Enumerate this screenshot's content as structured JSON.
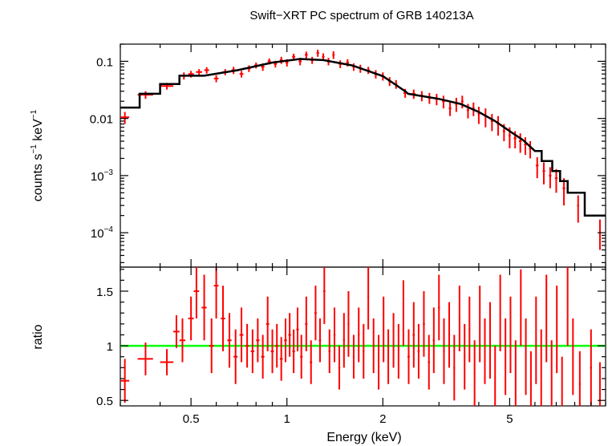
{
  "chart_data": {
    "title": "Swift−XRT PC spectrum of GRB 140213A",
    "xlabel": "Energy (keV)",
    "xscale": "log",
    "xlim": [
      0.3,
      10
    ],
    "x_ticks": [
      {
        "value": 0.5,
        "label": "0.5"
      },
      {
        "value": 1,
        "label": "1"
      },
      {
        "value": 2,
        "label": "2"
      },
      {
        "value": 5,
        "label": "5"
      }
    ],
    "panels": [
      {
        "id": "spectrum",
        "type": "line",
        "ylabel_parts": [
          "counts s",
          "−1",
          " keV",
          "−1"
        ],
        "yscale": "log",
        "ylim": [
          2.5e-05,
          0.2
        ],
        "y_ticks": [
          {
            "value": 0.1,
            "label": "0.1"
          },
          {
            "value": 0.01,
            "label": "0.01"
          },
          {
            "value": 0.001,
            "base": "10",
            "exp": "−3"
          },
          {
            "value": 0.0001,
            "base": "10",
            "exp": "−4"
          }
        ],
        "data_color": "#ff0000",
        "model_color": "#000000",
        "data": [
          [
            0.31,
            0.0105,
            0.01,
            0.0025
          ],
          [
            0.36,
            0.026,
            0.02,
            0.004
          ],
          [
            0.42,
            0.037,
            0.02,
            0.005
          ],
          [
            0.475,
            0.056,
            0.015,
            0.008
          ],
          [
            0.5,
            0.06,
            0.01,
            0.008
          ],
          [
            0.53,
            0.065,
            0.012,
            0.008
          ],
          [
            0.56,
            0.07,
            0.01,
            0.009
          ],
          [
            0.6,
            0.05,
            0.01,
            0.007
          ],
          [
            0.64,
            0.065,
            0.012,
            0.008
          ],
          [
            0.68,
            0.07,
            0.01,
            0.01
          ],
          [
            0.72,
            0.06,
            0.01,
            0.008
          ],
          [
            0.76,
            0.075,
            0.01,
            0.01
          ],
          [
            0.8,
            0.085,
            0.01,
            0.01
          ],
          [
            0.84,
            0.08,
            0.01,
            0.012
          ],
          [
            0.88,
            0.1,
            0.01,
            0.012
          ],
          [
            0.92,
            0.09,
            0.01,
            0.012
          ],
          [
            0.96,
            0.105,
            0.01,
            0.015
          ],
          [
            1.0,
            0.095,
            0.01,
            0.014
          ],
          [
            1.05,
            0.12,
            0.012,
            0.016
          ],
          [
            1.1,
            0.1,
            0.012,
            0.015
          ],
          [
            1.15,
            0.13,
            0.012,
            0.018
          ],
          [
            1.2,
            0.105,
            0.012,
            0.015
          ],
          [
            1.25,
            0.14,
            0.012,
            0.02
          ],
          [
            1.3,
            0.12,
            0.012,
            0.018
          ],
          [
            1.35,
            0.1,
            0.012,
            0.015
          ],
          [
            1.4,
            0.13,
            0.012,
            0.02
          ],
          [
            1.47,
            0.09,
            0.015,
            0.014
          ],
          [
            1.55,
            0.095,
            0.015,
            0.014
          ],
          [
            1.62,
            0.08,
            0.015,
            0.012
          ],
          [
            1.7,
            0.075,
            0.015,
            0.012
          ],
          [
            1.8,
            0.07,
            0.02,
            0.01
          ],
          [
            1.9,
            0.06,
            0.02,
            0.01
          ],
          [
            2.0,
            0.055,
            0.02,
            0.009
          ],
          [
            2.1,
            0.045,
            0.02,
            0.008
          ],
          [
            2.2,
            0.04,
            0.02,
            0.007
          ],
          [
            2.35,
            0.028,
            0.03,
            0.005
          ],
          [
            2.5,
            0.027,
            0.03,
            0.005
          ],
          [
            2.65,
            0.025,
            0.03,
            0.005
          ],
          [
            2.8,
            0.023,
            0.03,
            0.005
          ],
          [
            2.95,
            0.022,
            0.03,
            0.005
          ],
          [
            3.1,
            0.02,
            0.03,
            0.005
          ],
          [
            3.25,
            0.015,
            0.03,
            0.004
          ],
          [
            3.4,
            0.018,
            0.03,
            0.005
          ],
          [
            3.55,
            0.02,
            0.03,
            0.005
          ],
          [
            3.7,
            0.014,
            0.03,
            0.004
          ],
          [
            3.85,
            0.015,
            0.03,
            0.004
          ],
          [
            4.0,
            0.012,
            0.03,
            0.004
          ],
          [
            4.2,
            0.011,
            0.03,
            0.004
          ],
          [
            4.4,
            0.009,
            0.04,
            0.003
          ],
          [
            4.6,
            0.008,
            0.04,
            0.003
          ],
          [
            4.8,
            0.006,
            0.04,
            0.002
          ],
          [
            5.0,
            0.005,
            0.04,
            0.002
          ],
          [
            5.2,
            0.0045,
            0.05,
            0.0015
          ],
          [
            5.4,
            0.004,
            0.05,
            0.0015
          ],
          [
            5.6,
            0.0035,
            0.05,
            0.0012
          ],
          [
            5.8,
            0.003,
            0.05,
            0.001
          ],
          [
            6.1,
            0.0015,
            0.06,
            0.0006
          ],
          [
            6.4,
            0.0012,
            0.06,
            0.0005
          ],
          [
            6.7,
            0.001,
            0.06,
            0.0004
          ],
          [
            7.0,
            0.0009,
            0.07,
            0.0004
          ],
          [
            7.4,
            0.0006,
            0.07,
            0.0003
          ],
          [
            8.2,
            0.0003,
            0.06,
            0.00015
          ],
          [
            9.6,
            0.00011,
            0.05,
            6e-05
          ]
        ],
        "model": [
          [
            0.3,
            0.0155
          ],
          [
            0.345,
            0.0155
          ],
          [
            0.345,
            0.027
          ],
          [
            0.4,
            0.027
          ],
          [
            0.4,
            0.04
          ],
          [
            0.46,
            0.04
          ],
          [
            0.46,
            0.056
          ],
          [
            0.55,
            0.056
          ],
          [
            0.7,
            0.07
          ],
          [
            0.9,
            0.095
          ],
          [
            1.1,
            0.11
          ],
          [
            1.3,
            0.105
          ],
          [
            1.6,
            0.085
          ],
          [
            2.0,
            0.055
          ],
          [
            2.35,
            0.03
          ],
          [
            2.4,
            0.027
          ],
          [
            3.0,
            0.022
          ],
          [
            3.5,
            0.018
          ],
          [
            4.0,
            0.013
          ],
          [
            4.5,
            0.009
          ],
          [
            5.0,
            0.006
          ],
          [
            5.5,
            0.0042
          ],
          [
            6.0,
            0.0027
          ],
          [
            6.3,
            0.0027
          ],
          [
            6.3,
            0.0018
          ],
          [
            6.8,
            0.0018
          ],
          [
            6.8,
            0.0012
          ],
          [
            7.2,
            0.0012
          ],
          [
            7.2,
            0.0008
          ],
          [
            7.6,
            0.0008
          ],
          [
            7.6,
            0.0005
          ],
          [
            8.6,
            0.0005
          ],
          [
            8.6,
            0.0002
          ],
          [
            10.0,
            0.0002
          ]
        ]
      },
      {
        "id": "ratio",
        "type": "scatter",
        "ylabel": "ratio",
        "yscale": "linear",
        "ylim": [
          0.45,
          1.72
        ],
        "y_ticks": [
          {
            "value": 0.5,
            "label": "0.5"
          },
          {
            "value": 1,
            "label": "1"
          },
          {
            "value": 1.5,
            "label": "1.5"
          }
        ],
        "data_color": "#ff0000",
        "reference_value": 1,
        "reference_color": "#00ff00",
        "data": [
          [
            0.31,
            0.68,
            0.01,
            0.2
          ],
          [
            0.36,
            0.88,
            0.02,
            0.15
          ],
          [
            0.42,
            0.85,
            0.02,
            0.12
          ],
          [
            0.45,
            1.13,
            0.01,
            0.15
          ],
          [
            0.47,
            1.05,
            0.01,
            0.2
          ],
          [
            0.5,
            1.25,
            0.01,
            0.2
          ],
          [
            0.52,
            1.5,
            0.01,
            0.25
          ],
          [
            0.55,
            1.35,
            0.01,
            0.3
          ],
          [
            0.58,
            1.0,
            0.01,
            0.25
          ],
          [
            0.6,
            1.55,
            0.01,
            0.3
          ],
          [
            0.63,
            1.25,
            0.01,
            0.3
          ],
          [
            0.66,
            1.05,
            0.01,
            0.25
          ],
          [
            0.69,
            0.9,
            0.01,
            0.25
          ],
          [
            0.72,
            1.1,
            0.01,
            0.25
          ],
          [
            0.75,
            1.0,
            0.01,
            0.2
          ],
          [
            0.78,
            0.95,
            0.01,
            0.2
          ],
          [
            0.81,
            1.05,
            0.01,
            0.2
          ],
          [
            0.84,
            0.9,
            0.01,
            0.2
          ],
          [
            0.87,
            1.2,
            0.01,
            0.25
          ],
          [
            0.9,
            0.95,
            0.01,
            0.2
          ],
          [
            0.93,
            1.0,
            0.01,
            0.2
          ],
          [
            0.96,
            0.88,
            0.01,
            0.2
          ],
          [
            0.99,
            1.05,
            0.01,
            0.2
          ],
          [
            1.02,
            1.1,
            0.01,
            0.2
          ],
          [
            1.05,
            0.95,
            0.01,
            0.2
          ],
          [
            1.08,
            1.15,
            0.01,
            0.2
          ],
          [
            1.11,
            0.9,
            0.01,
            0.2
          ],
          [
            1.15,
            1.2,
            0.01,
            0.25
          ],
          [
            1.19,
            0.85,
            0.01,
            0.2
          ],
          [
            1.23,
            1.3,
            0.01,
            0.25
          ],
          [
            1.27,
            1.05,
            0.01,
            0.2
          ],
          [
            1.31,
            1.5,
            0.01,
            0.3
          ],
          [
            1.36,
            0.95,
            0.01,
            0.2
          ],
          [
            1.41,
            1.1,
            0.01,
            0.25
          ],
          [
            1.46,
            0.8,
            0.01,
            0.2
          ],
          [
            1.51,
            1.05,
            0.01,
            0.25
          ],
          [
            1.56,
            1.2,
            0.01,
            0.3
          ],
          [
            1.62,
            0.9,
            0.01,
            0.2
          ],
          [
            1.68,
            1.1,
            0.01,
            0.25
          ],
          [
            1.74,
            0.95,
            0.01,
            0.25
          ],
          [
            1.8,
            1.45,
            0.01,
            0.3
          ],
          [
            1.87,
            1.0,
            0.01,
            0.25
          ],
          [
            1.94,
            0.85,
            0.01,
            0.25
          ],
          [
            2.01,
            1.15,
            0.01,
            0.3
          ],
          [
            2.08,
            0.9,
            0.01,
            0.25
          ],
          [
            2.16,
            1.05,
            0.01,
            0.25
          ],
          [
            2.24,
            0.95,
            0.01,
            0.25
          ],
          [
            2.32,
            1.3,
            0.01,
            0.3
          ],
          [
            2.41,
            0.9,
            0.02,
            0.25
          ],
          [
            2.5,
            1.1,
            0.02,
            0.3
          ],
          [
            2.59,
            0.95,
            0.02,
            0.25
          ],
          [
            2.69,
            1.2,
            0.02,
            0.3
          ],
          [
            2.79,
            0.85,
            0.02,
            0.25
          ],
          [
            2.89,
            1.05,
            0.02,
            0.3
          ],
          [
            3.0,
            1.35,
            0.02,
            0.3
          ],
          [
            3.11,
            0.95,
            0.02,
            0.3
          ],
          [
            3.23,
            1.1,
            0.02,
            0.3
          ],
          [
            3.35,
            0.8,
            0.02,
            0.3
          ],
          [
            3.48,
            1.25,
            0.02,
            0.3
          ],
          [
            3.61,
            0.9,
            0.02,
            0.3
          ],
          [
            3.74,
            1.15,
            0.02,
            0.3
          ],
          [
            3.88,
            0.75,
            0.02,
            0.3
          ],
          [
            4.03,
            1.2,
            0.02,
            0.35
          ],
          [
            4.18,
            0.95,
            0.02,
            0.3
          ],
          [
            4.34,
            1.05,
            0.02,
            0.35
          ],
          [
            4.5,
            0.7,
            0.02,
            0.3
          ],
          [
            4.67,
            1.3,
            0.02,
            0.35
          ],
          [
            4.85,
            0.9,
            0.02,
            0.35
          ],
          [
            5.03,
            1.1,
            0.02,
            0.35
          ],
          [
            5.22,
            0.75,
            0.02,
            0.3
          ],
          [
            5.42,
            1.35,
            0.02,
            0.35
          ],
          [
            5.62,
            0.9,
            0.02,
            0.35
          ],
          [
            5.83,
            0.65,
            0.03,
            0.3
          ],
          [
            6.05,
            1.05,
            0.03,
            0.4
          ],
          [
            6.28,
            0.8,
            0.03,
            0.35
          ],
          [
            6.52,
            1.25,
            0.03,
            0.4
          ],
          [
            6.77,
            0.7,
            0.03,
            0.35
          ],
          [
            7.03,
            1.15,
            0.03,
            0.4
          ],
          [
            7.3,
            0.6,
            0.03,
            0.3
          ],
          [
            7.6,
            1.4,
            0.03,
            0.4
          ],
          [
            7.9,
            0.9,
            0.03,
            0.35
          ],
          [
            8.3,
            0.65,
            0.05,
            0.3
          ],
          [
            9.0,
            0.8,
            0.06,
            0.35
          ],
          [
            9.6,
            0.55,
            0.05,
            0.3
          ]
        ]
      }
    ]
  }
}
